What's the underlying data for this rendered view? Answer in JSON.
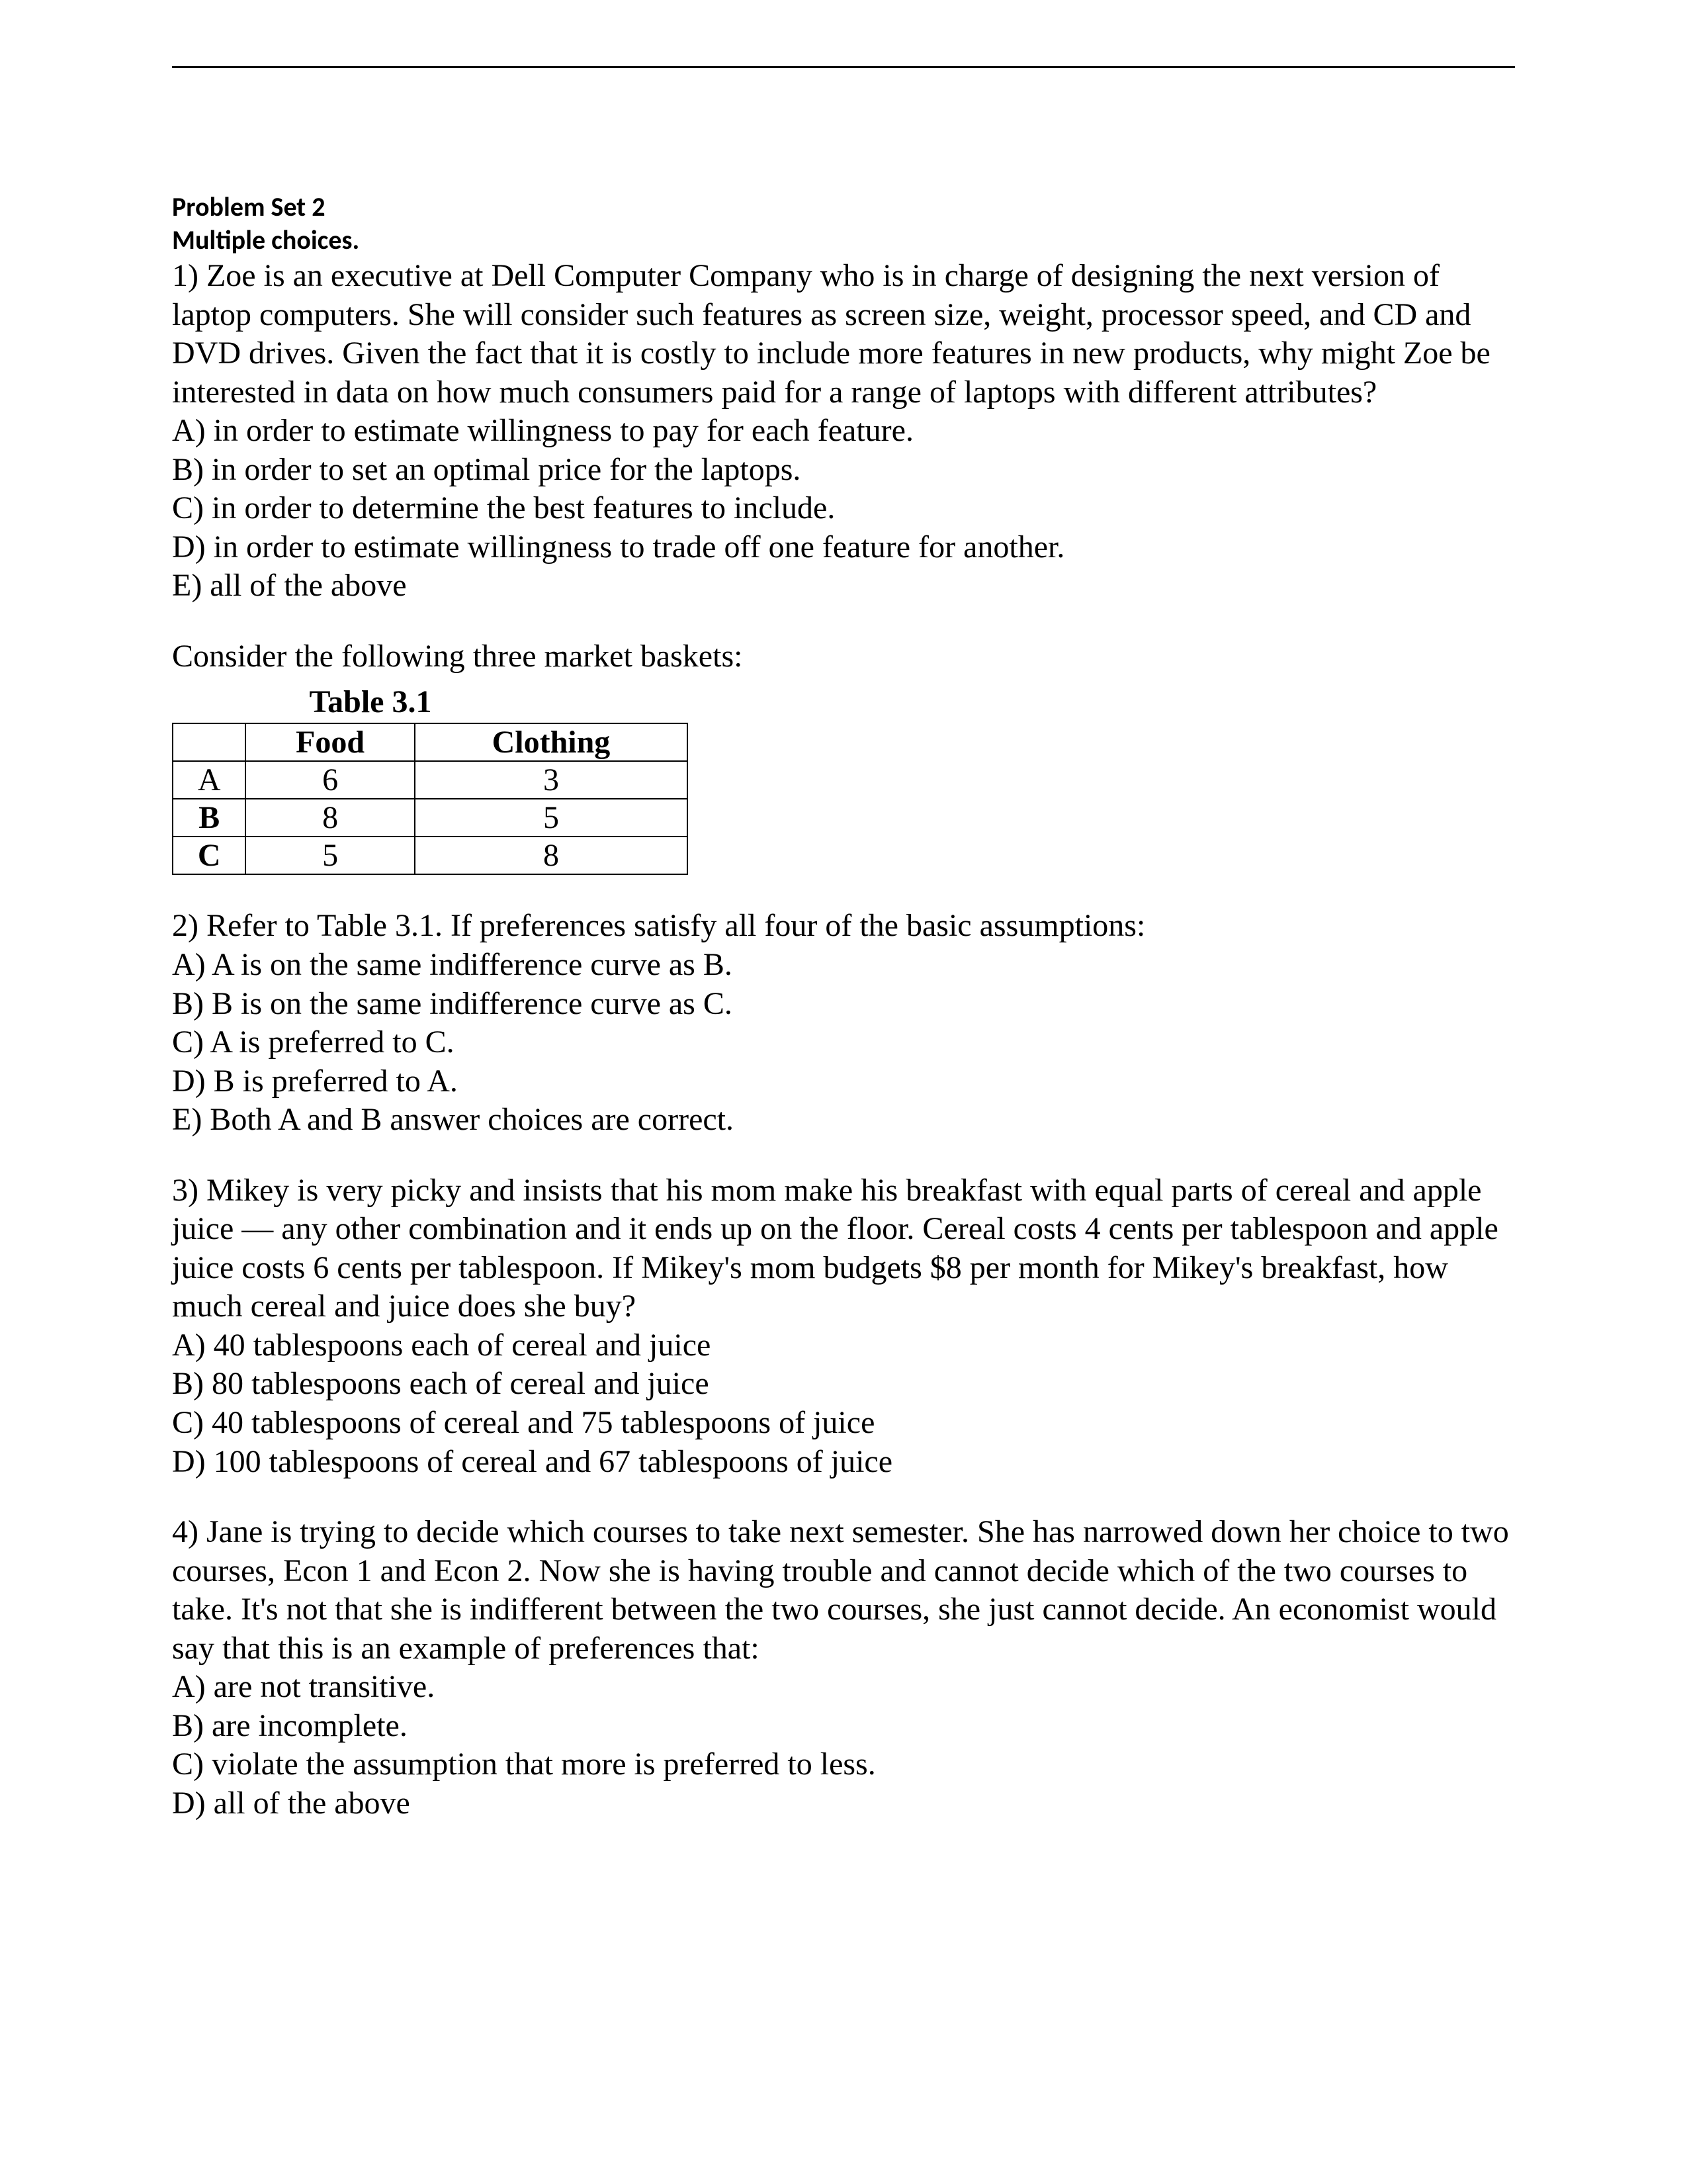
{
  "header": {
    "title": "Problem Set 2",
    "subtitle": "Multiple choices."
  },
  "q1": {
    "text": "1) Zoe is an executive at Dell Computer Company who is in charge of designing the next version of laptop computers.  She will consider such features as screen size, weight, processor speed, and CD and DVD drives.  Given the fact that it is costly to include more features in new products, why might Zoe be interested in data on how much consumers paid for a range of laptops with different attributes?",
    "a": "A) in order to estimate willingness to pay for each feature.",
    "b": "B) in order to set an optimal price for the laptops.",
    "c": "C) in order to determine the best features to include.",
    "d": "D) in order to estimate willingness to trade off one feature for another.",
    "e": "E) all of the above"
  },
  "baskets_intro": "Consider the following three market baskets:",
  "table": {
    "title": "Table 3.1",
    "col1": "Food",
    "col2": "Clothing",
    "rows": {
      "r0": {
        "label": "A",
        "food": "6",
        "clothing": "3",
        "bold": false
      },
      "r1": {
        "label": "B",
        "food": "8",
        "clothing": "5",
        "bold": true
      },
      "r2": {
        "label": "C",
        "food": "5",
        "clothing": "8",
        "bold": true
      }
    }
  },
  "q2": {
    "text": "2) Refer to Table 3.1.  If preferences satisfy all four of the basic assumptions:",
    "a": "A) A is on the same indifference curve as B.",
    "b": "B) B is on the same indifference curve as C.",
    "c": "C) A is preferred to C.",
    "d": "D) B is preferred to A.",
    "e": "E) Both A and B answer choices are correct."
  },
  "q3": {
    "text": "3) Mikey is very picky and insists that his mom make his breakfast with equal parts of cereal and apple juice — any other combination and it ends up on the floor.  Cereal costs 4 cents per tablespoon and apple juice costs 6 cents per tablespoon.  If Mikey's mom budgets $8 per month for Mikey's breakfast, how much cereal and juice does she buy?",
    "a": "A) 40 tablespoons each of cereal and juice",
    "b": "B) 80 tablespoons each of cereal and juice",
    "c": "C) 40 tablespoons of cereal and 75 tablespoons of juice",
    "d": "D) 100 tablespoons of cereal and 67 tablespoons of juice"
  },
  "q4": {
    "text": "4) Jane is trying to decide which courses to take next semester.  She has narrowed down her choice to two courses, Econ 1 and Econ 2.  Now she is having trouble and cannot decide which of the two courses to take.  It's not that she is indifferent between the two courses, she just cannot decide.  An economist would say that this is an example of preferences that:",
    "a": "A) are not transitive.",
    "b": "B) are incomplete.",
    "c": "C) violate the assumption that more is preferred to less.",
    "d": "D) all of the above"
  }
}
